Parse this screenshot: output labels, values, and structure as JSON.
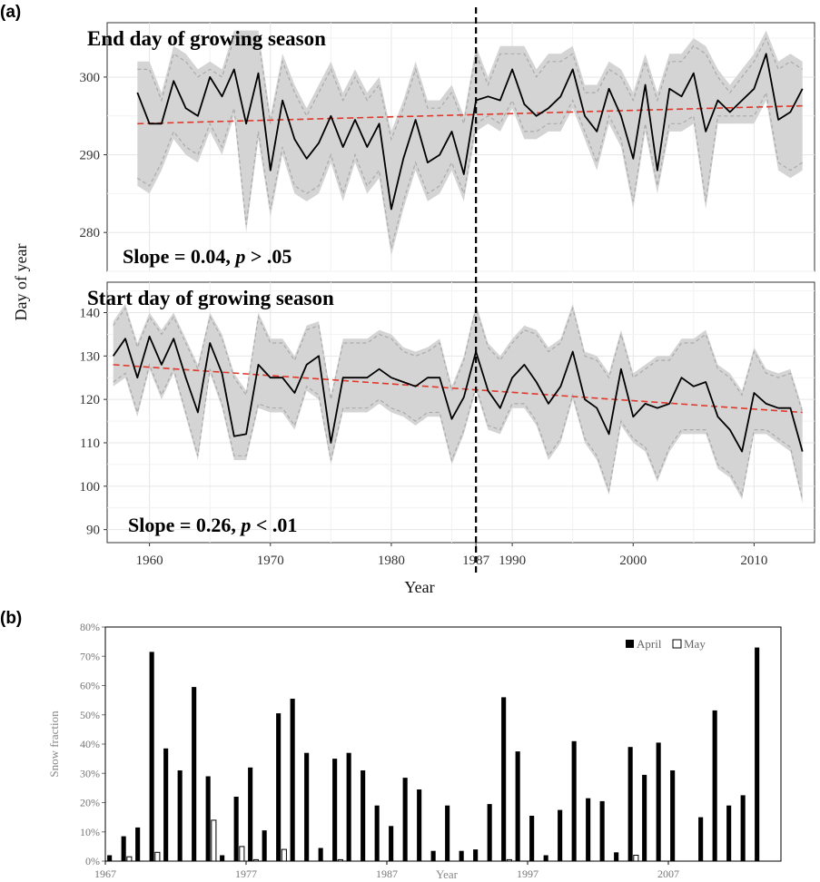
{
  "panel_a": {
    "label": "(a)",
    "ylabel": "Day of year",
    "xlabel": "Year",
    "x_ticks": [
      "1960",
      "1970",
      "1980",
      "1987",
      "1990",
      "2000",
      "2010"
    ],
    "x_tick_values": [
      1960,
      1970,
      1980,
      1987,
      1990,
      2000,
      2010
    ],
    "xlim": [
      1956.5,
      2015
    ],
    "breakpoint_year": 1987
  },
  "panel_b": {
    "label": "(b)"
  },
  "chart_data": [
    {
      "type": "line",
      "title": "End day of growing season",
      "annotation": "Slope = 0.04, p > .05",
      "annotation_parts": [
        "Slope = 0.04, ",
        "p",
        " > .05"
      ],
      "ylim": [
        275,
        307
      ],
      "y_ticks": [
        280,
        290,
        300
      ],
      "grid": true,
      "x": [
        1959,
        1960,
        1961,
        1962,
        1963,
        1964,
        1965,
        1966,
        1967,
        1968,
        1969,
        1970,
        1971,
        1972,
        1973,
        1974,
        1975,
        1976,
        1977,
        1978,
        1979,
        1980,
        1981,
        1982,
        1983,
        1984,
        1985,
        1986,
        1987,
        1988,
        1989,
        1990,
        1991,
        1992,
        1993,
        1994,
        1995,
        1996,
        1997,
        1998,
        1999,
        2000,
        2001,
        2002,
        2003,
        2004,
        2005,
        2006,
        2007,
        2008,
        2009,
        2010,
        2011,
        2012,
        2013,
        2014
      ],
      "series": [
        {
          "role": "mean",
          "color": "#000000",
          "values": [
            298,
            294,
            294,
            299.5,
            296,
            295,
            300,
            297.5,
            301,
            294,
            300.5,
            288,
            297,
            292,
            289.5,
            291.5,
            295,
            291,
            294.5,
            291,
            294,
            283,
            289.5,
            294.5,
            289,
            290,
            293,
            287.5,
            297,
            297.5,
            297,
            301,
            296.5,
            295,
            296,
            297.5,
            301,
            295,
            293,
            298.5,
            295,
            289.5,
            299,
            288,
            298.5,
            297.5,
            300.5,
            293,
            297,
            295.5,
            297,
            298.5,
            303,
            294.5,
            295.5,
            298.5
          ]
        },
        {
          "role": "range",
          "color": "#d4d4d4",
          "lower": [
            286,
            285,
            288,
            292,
            290,
            289,
            293,
            290,
            295,
            280,
            292,
            282,
            290,
            285,
            284,
            285,
            289,
            284,
            289,
            285,
            287,
            277,
            283,
            288,
            284,
            285,
            288,
            284,
            293,
            294,
            293,
            296,
            292,
            292,
            293,
            293,
            296,
            292,
            288,
            294,
            291,
            283,
            293,
            285,
            293,
            293,
            294,
            283,
            294,
            294,
            294,
            294,
            297,
            288,
            287,
            288
          ],
          "upper": [
            302,
            302,
            298,
            304,
            303,
            301,
            302,
            301,
            306,
            306,
            306,
            295,
            303,
            299,
            296,
            299,
            302,
            298,
            301,
            298,
            300,
            293,
            297,
            302,
            297,
            297,
            299,
            295,
            304,
            300,
            304,
            304,
            304,
            301,
            303,
            303,
            304,
            299,
            299,
            302,
            301,
            298,
            303,
            298,
            303,
            303,
            305,
            304,
            301,
            299,
            301,
            303,
            306,
            302,
            303,
            302
          ]
        },
        {
          "role": "trend",
          "color": "#e0392b",
          "x": [
            1959,
            2014
          ],
          "values": [
            294,
            296.3
          ]
        }
      ]
    },
    {
      "type": "line",
      "title": "Start day of growing season",
      "annotation": "Slope = 0.26, p < .01",
      "annotation_parts": [
        "Slope = 0.26, ",
        "p",
        " < .01"
      ],
      "ylim": [
        87,
        147
      ],
      "y_ticks": [
        90,
        100,
        110,
        120,
        130,
        140
      ],
      "grid": true,
      "x": [
        1957,
        1958,
        1959,
        1960,
        1961,
        1962,
        1963,
        1964,
        1965,
        1966,
        1967,
        1968,
        1969,
        1970,
        1971,
        1972,
        1973,
        1974,
        1975,
        1976,
        1977,
        1978,
        1979,
        1980,
        1981,
        1982,
        1983,
        1984,
        1985,
        1986,
        1987,
        1988,
        1989,
        1990,
        1991,
        1992,
        1993,
        1994,
        1995,
        1996,
        1997,
        1998,
        1999,
        2000,
        2001,
        2002,
        2003,
        2004,
        2005,
        2006,
        2007,
        2008,
        2009,
        2010,
        2011,
        2012,
        2013,
        2014
      ],
      "series": [
        {
          "role": "mean",
          "color": "#000000",
          "values": [
            130,
            134,
            125,
            134.5,
            128,
            134,
            125,
            117,
            133,
            126,
            111.5,
            112,
            128,
            125,
            125,
            121.5,
            128,
            130,
            110,
            125,
            125,
            125,
            127,
            125,
            124,
            123,
            125,
            125,
            115.5,
            120.5,
            131,
            122,
            118,
            125,
            128,
            124,
            119,
            123,
            131,
            120,
            118,
            112,
            127,
            116,
            119,
            118,
            119,
            125,
            123,
            124,
            116,
            113,
            108,
            121.5,
            119,
            118,
            118,
            108
          ]
        },
        {
          "role": "range",
          "color": "#d4d4d4",
          "lower": [
            123,
            125,
            116,
            127,
            120,
            126,
            116,
            106,
            126,
            118,
            106,
            106,
            118,
            117,
            117,
            113,
            122,
            120,
            105,
            117,
            117,
            117,
            119,
            117,
            116,
            114,
            116,
            116,
            105,
            112,
            122,
            113,
            112,
            118,
            118,
            114,
            106,
            110,
            120,
            110,
            106,
            98,
            114,
            110,
            108,
            101,
            108,
            112,
            112,
            112,
            104,
            102,
            97,
            112,
            112,
            110,
            108,
            96
          ],
          "upper": [
            138,
            142,
            133,
            140,
            136,
            140,
            134,
            128,
            140,
            135,
            126,
            122,
            140,
            134,
            134,
            130,
            137,
            138,
            121,
            134,
            134,
            134,
            136,
            135,
            132,
            131,
            132,
            134,
            123,
            130,
            142,
            133,
            130,
            134,
            137,
            136,
            132,
            134,
            142,
            131,
            130,
            126,
            136,
            126,
            128,
            130,
            130,
            134,
            134,
            136,
            128,
            126,
            122,
            132,
            127,
            126,
            127,
            118
          ]
        },
        {
          "role": "trend",
          "color": "#e0392b",
          "x": [
            1957,
            2014
          ],
          "values": [
            128,
            117
          ]
        }
      ]
    },
    {
      "type": "bar",
      "xlabel": "Year",
      "ylabel": "Snow fraction",
      "ylim": [
        0,
        0.8
      ],
      "y_ticks": [
        "0%",
        "10%",
        "20%",
        "30%",
        "40%",
        "50%",
        "60%",
        "70%",
        "80%"
      ],
      "y_tick_values": [
        0,
        0.1,
        0.2,
        0.3,
        0.4,
        0.5,
        0.6,
        0.7,
        0.8
      ],
      "x_ticks": [
        "1967",
        "1977",
        "1987",
        "1997",
        "2007"
      ],
      "x_tick_values": [
        1967,
        1977,
        1987,
        1997,
        2007
      ],
      "xlim": [
        1967,
        2015
      ],
      "legend_position": "top-right",
      "categories": [
        1967,
        1968,
        1969,
        1970,
        1971,
        1972,
        1973,
        1974,
        1975,
        1976,
        1977,
        1978,
        1979,
        1980,
        1981,
        1982,
        1983,
        1984,
        1985,
        1986,
        1987,
        1988,
        1989,
        1990,
        1991,
        1992,
        1993,
        1994,
        1995,
        1996,
        1997,
        1998,
        1999,
        2000,
        2001,
        2002,
        2003,
        2004,
        2005,
        2006,
        2007,
        2008,
        2009,
        2010,
        2011,
        2012,
        2013
      ],
      "series": [
        {
          "name": "April",
          "color": "#000000",
          "values": [
            0.02,
            0.085,
            0.115,
            0.715,
            0.385,
            0.31,
            0.595,
            0.29,
            0.02,
            0.22,
            0.32,
            0.105,
            0.505,
            0.555,
            0.37,
            0.045,
            0.35,
            0.37,
            0.31,
            0.19,
            0.12,
            0.285,
            0.245,
            0.035,
            0.19,
            0.035,
            0.04,
            0.195,
            0.56,
            0.375,
            0.155,
            0.02,
            0.175,
            0.41,
            0.215,
            0.205,
            0.03,
            0.39,
            0.295,
            0.405,
            0.31,
            0,
            0.15,
            0.515,
            0.19,
            0.225,
            0.73
          ]
        },
        {
          "name": "May",
          "color": "#ffffff",
          "values": [
            0,
            0.015,
            0,
            0.03,
            0,
            0,
            0,
            0.14,
            0,
            0.05,
            0.005,
            0,
            0.04,
            0,
            0,
            0,
            0.005,
            0,
            0,
            0,
            0,
            0,
            0,
            0,
            0,
            0,
            0,
            0,
            0.005,
            0,
            0,
            0,
            0,
            0,
            0,
            0,
            0,
            0.02,
            0,
            0,
            0,
            0,
            0,
            0,
            0,
            0,
            0
          ]
        }
      ]
    }
  ]
}
